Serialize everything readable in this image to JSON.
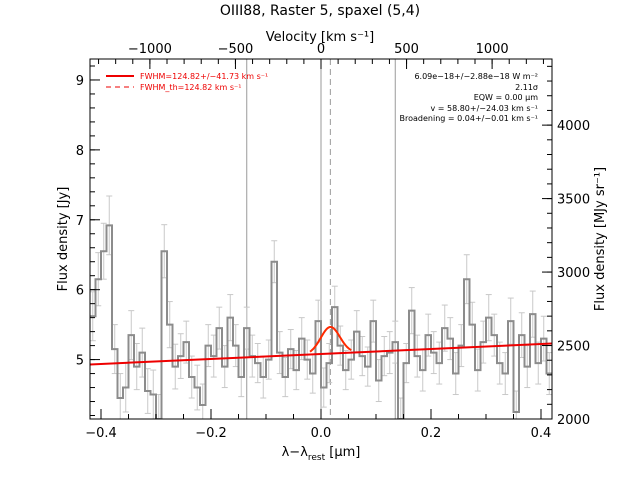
{
  "chart_data": {
    "type": "line",
    "title": "OIII88, Raster 5, spaxel (5,4)",
    "xlabel_main": "λ−λ",
    "xlabel_sub": "rest",
    "xlabel_unit": " [μm]",
    "ylabel_left": "Flux density [Jy]",
    "ylabel_right": "Flux density [MJy sr⁻¹]",
    "top_axis_label": "Velocity [km s⁻¹]",
    "xlim": [
      -0.42,
      0.42
    ],
    "ylim": [
      4.15,
      9.3
    ],
    "right_ylim": [
      2000,
      4450
    ],
    "top_xlim": [
      -1350,
      1350
    ],
    "x_ticks": [
      -0.4,
      -0.2,
      0.0,
      0.2,
      0.4
    ],
    "x_tick_labels": [
      "−0.4",
      "−0.2",
      "0.0",
      "0.2",
      "0.4"
    ],
    "y_ticks": [
      5,
      6,
      7,
      8,
      9
    ],
    "y_tick_labels": [
      "5",
      "6",
      "7",
      "8",
      "9"
    ],
    "right_ticks": [
      2000,
      2500,
      3000,
      3500,
      4000
    ],
    "right_tick_labels": [
      "2000",
      "2500",
      "3000",
      "3500",
      "4000"
    ],
    "top_ticks": [
      -1000,
      -500,
      0,
      500,
      1000
    ],
    "top_tick_labels": [
      "−1000",
      "−500",
      "0",
      "500",
      "1000"
    ],
    "vlines_solid": [
      -0.135,
      0.0,
      0.135
    ],
    "vline_dashed": 0.017,
    "legend": [
      {
        "label": "FWHM=124.82+/−41.73 km s⁻¹",
        "style": "solid"
      },
      {
        "label": "FWHM_th=124.82 km s⁻¹",
        "style": "dashed"
      }
    ],
    "annotations": [
      "6.09e−18+/−2.88e−18 W m⁻²",
      "2.11σ",
      "EQW = 0.00 μm",
      "v = 58.80+/−24.03 km s⁻¹",
      "Broadening = 0.04+/−0.01 km s⁻¹"
    ],
    "continuum": {
      "x": [
        -0.42,
        0.42
      ],
      "y": [
        4.93,
        5.23
      ]
    },
    "gaussian": {
      "center": 0.017,
      "sigma": 0.0175,
      "amplitude": 0.38,
      "xrange": [
        -0.02,
        0.055
      ]
    },
    "spectrum": {
      "x": [
        -0.42,
        -0.41,
        -0.4,
        -0.39,
        -0.38,
        -0.37,
        -0.36,
        -0.35,
        -0.34,
        -0.33,
        -0.32,
        -0.31,
        -0.3,
        -0.29,
        -0.28,
        -0.27,
        -0.26,
        -0.25,
        -0.24,
        -0.23,
        -0.22,
        -0.21,
        -0.2,
        -0.19,
        -0.18,
        -0.17,
        -0.16,
        -0.15,
        -0.14,
        -0.13,
        -0.12,
        -0.11,
        -0.1,
        -0.09,
        -0.08,
        -0.07,
        -0.06,
        -0.05,
        -0.04,
        -0.03,
        -0.02,
        -0.01,
        0.0,
        0.01,
        0.02,
        0.03,
        0.04,
        0.05,
        0.06,
        0.07,
        0.08,
        0.09,
        0.1,
        0.11,
        0.12,
        0.13,
        0.14,
        0.15,
        0.16,
        0.17,
        0.18,
        0.19,
        0.2,
        0.21,
        0.22,
        0.23,
        0.24,
        0.25,
        0.26,
        0.27,
        0.28,
        0.29,
        0.3,
        0.31,
        0.32,
        0.33,
        0.34,
        0.35,
        0.36,
        0.37,
        0.38,
        0.39,
        0.4,
        0.41
      ],
      "y": [
        5.62,
        6.15,
        6.55,
        6.92,
        5.15,
        4.45,
        4.6,
        5.35,
        4.9,
        5.1,
        4.55,
        4.5,
        4.15,
        6.55,
        5.5,
        4.9,
        5.05,
        5.25,
        4.75,
        4.6,
        4.35,
        5.2,
        5.05,
        5.45,
        4.9,
        5.6,
        5.2,
        4.75,
        5.45,
        5.05,
        4.95,
        4.75,
        5.0,
        6.4,
        5.1,
        4.75,
        5.15,
        4.85,
        5.3,
        5.0,
        4.8,
        5.55,
        4.6,
        4.95,
        5.75,
        5.2,
        4.85,
        5.0,
        5.4,
        5.05,
        4.9,
        5.55,
        4.7,
        5.05,
        5.1,
        5.25,
        4.15,
        4.95,
        5.7,
        5.05,
        4.85,
        5.35,
        5.1,
        4.95,
        5.45,
        5.3,
        4.8,
        5.2,
        6.15,
        5.5,
        4.85,
        5.25,
        5.6,
        5.35,
        4.95,
        4.8,
        5.55,
        4.25,
        5.35,
        4.9,
        5.65,
        4.95,
        5.3,
        4.8
      ],
      "err": [
        0.35,
        0.38,
        0.4,
        0.42,
        0.35,
        0.35,
        0.35,
        0.35,
        0.33,
        0.35,
        0.32,
        0.35,
        0.35,
        0.38,
        0.33,
        0.32,
        0.32,
        0.3,
        0.3,
        0.32,
        0.3,
        0.3,
        0.3,
        0.3,
        0.3,
        0.33,
        0.3,
        0.28,
        0.3,
        0.3,
        0.28,
        0.3,
        0.28,
        0.3,
        0.3,
        0.28,
        0.28,
        0.28,
        0.3,
        0.28,
        0.28,
        0.3,
        0.28,
        0.28,
        0.3,
        0.28,
        0.28,
        0.28,
        0.3,
        0.28,
        0.28,
        0.3,
        0.3,
        0.28,
        0.3,
        0.3,
        0.3,
        0.28,
        0.33,
        0.3,
        0.3,
        0.3,
        0.3,
        0.3,
        0.33,
        0.3,
        0.3,
        0.3,
        0.35,
        0.32,
        0.3,
        0.3,
        0.33,
        0.3,
        0.3,
        0.3,
        0.33,
        0.3,
        0.32,
        0.3,
        0.33,
        0.3,
        0.32,
        0.3
      ]
    },
    "colors": {
      "spectrum": "#8c8c8c",
      "errorbar": "#c8c8c8",
      "fit": "#ff2a00",
      "continuum": "#ee0000",
      "vline": "#9a9a9a",
      "legend": "#ee0000"
    }
  }
}
